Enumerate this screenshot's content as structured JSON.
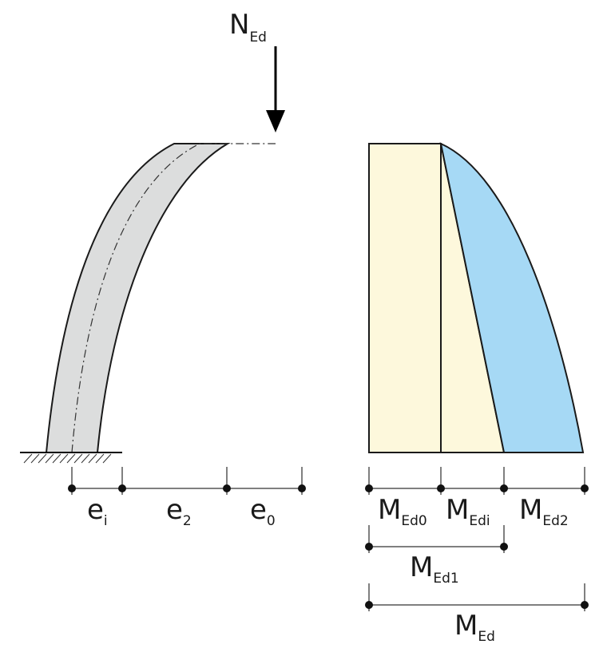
{
  "load": {
    "symbol": "N",
    "subscript": "Ed"
  },
  "column": {
    "fill_color": "#dcdddd"
  },
  "column_dimensions": [
    {
      "symbol": "e",
      "subscript": "i"
    },
    {
      "symbol": "e",
      "subscript": "2"
    },
    {
      "symbol": "e",
      "subscript": "0"
    }
  ],
  "moment_diagram": {
    "first_order_color": "#fdf8dc",
    "second_order_color": "#a6d9f5"
  },
  "moment_dimensions": {
    "row1": [
      {
        "symbol": "M",
        "subscript": "Ed0"
      },
      {
        "symbol": "M",
        "subscript": "Edi"
      },
      {
        "symbol": "M",
        "subscript": "Ed2"
      }
    ],
    "row2": {
      "symbol": "M",
      "subscript": "Ed1"
    },
    "row3": {
      "symbol": "M",
      "subscript": "Ed"
    }
  }
}
